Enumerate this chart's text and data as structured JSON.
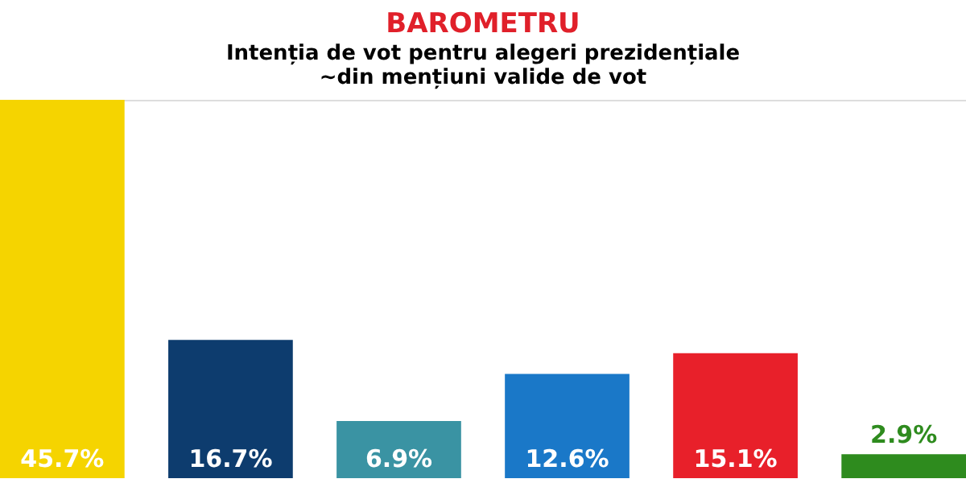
{
  "chart_data": {
    "type": "bar",
    "title": "BAROMETRU",
    "subtitle": [
      "Intenția de vot pentru alegeri prezidențiale",
      "~din mențiuni valide de vot"
    ],
    "categories": [
      null,
      null,
      null,
      null,
      null,
      null
    ],
    "values": [
      45.7,
      16.7,
      6.9,
      12.6,
      15.1,
      2.9
    ],
    "colors": [
      "#f5d400",
      "#0d3c6e",
      "#3a93a3",
      "#1a78c8",
      "#e8202a",
      "#2e8b1e"
    ],
    "value_labels": [
      "45.7%",
      "16.7%",
      "6.9%",
      "12.6%",
      "15.1%",
      "2.9%"
    ],
    "legend": false
  }
}
